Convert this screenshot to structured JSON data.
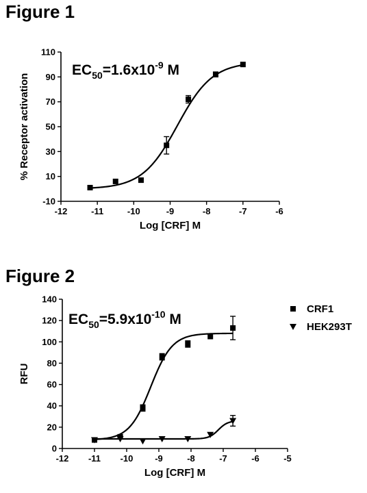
{
  "figure1": {
    "title": "Figure 1"
  },
  "figure2": {
    "title": "Figure 2"
  },
  "chart_data": [
    {
      "type": "scatter",
      "title": "",
      "annotation": {
        "prefix": "EC",
        "sub": "50",
        "mid": "=1.6x10",
        "sup": "-9",
        "suffix": " M"
      },
      "xlabel": "Log [CRF] M",
      "ylabel": "% Receptor activation",
      "xlim": [
        -12,
        -6
      ],
      "ylim": [
        -10,
        110
      ],
      "xticks": [
        -12,
        -11,
        -10,
        -9,
        -8,
        -7,
        -6
      ],
      "yticks": [
        -10,
        10,
        30,
        50,
        70,
        90,
        110
      ],
      "series": [
        {
          "marker": "square",
          "x": [
            -11.2,
            -10.5,
            -9.8,
            -9.1,
            -8.5,
            -7.75,
            -7.0
          ],
          "y": [
            1,
            6,
            7,
            35,
            72,
            92,
            100
          ],
          "err": [
            0,
            0,
            0,
            7,
            3,
            2,
            0
          ]
        }
      ],
      "fits": [
        {
          "bottom": 0,
          "top": 102,
          "logEC50": -8.8,
          "hill": 0.9
        }
      ]
    },
    {
      "type": "scatter",
      "title": "",
      "annotation": {
        "prefix": "EC",
        "sub": "50",
        "mid": "=5.9x10",
        "sup": "-10",
        "suffix": " M"
      },
      "xlabel": "Log [CRF] M",
      "ylabel": "RFU",
      "xlim": [
        -12,
        -5
      ],
      "ylim": [
        0,
        140
      ],
      "xticks": [
        -12,
        -11,
        -10,
        -9,
        -8,
        -7,
        -6,
        -5
      ],
      "yticks": [
        0,
        20,
        40,
        60,
        80,
        100,
        120,
        140
      ],
      "legend_position": "right",
      "series": [
        {
          "name": "CRF1",
          "marker": "square",
          "x": [
            -11.0,
            -10.2,
            -9.5,
            -8.9,
            -8.1,
            -7.4,
            -6.7
          ],
          "y": [
            8,
            11,
            38,
            86,
            98,
            105,
            113
          ],
          "err": [
            0,
            2,
            3,
            3,
            3,
            0,
            11
          ]
        },
        {
          "name": "HEK293T",
          "marker": "triangle-down",
          "x": [
            -11.0,
            -10.2,
            -9.5,
            -8.9,
            -8.1,
            -7.4,
            -6.7
          ],
          "y": [
            8,
            9,
            7,
            9,
            9,
            13,
            26
          ],
          "err": [
            0,
            0,
            0,
            0,
            0,
            0,
            5
          ]
        }
      ],
      "fits": [
        {
          "bottom": 8,
          "top": 108,
          "logEC50": -9.25,
          "hill": 1.3
        },
        {
          "bottom": 9,
          "top": 26,
          "logEC50": -7.15,
          "hill": 3.0
        }
      ]
    }
  ]
}
